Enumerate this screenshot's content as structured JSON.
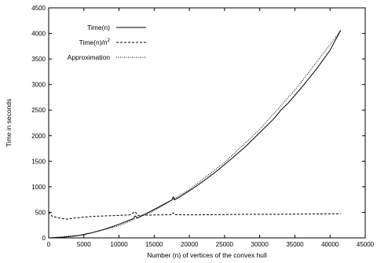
{
  "chart_data": {
    "type": "line",
    "title": "",
    "xlabel": "Number (n) of vertices of the convex hull",
    "ylabel": "Time in seconds",
    "xlim": [
      0,
      45000
    ],
    "ylim": [
      0,
      4500
    ],
    "xticks": [
      0,
      5000,
      10000,
      15000,
      20000,
      25000,
      30000,
      35000,
      40000,
      45000
    ],
    "yticks": [
      0,
      500,
      1000,
      1500,
      2000,
      2500,
      3000,
      3500,
      4000,
      4500
    ],
    "grid": false,
    "legend_position": "top-left",
    "series": [
      {
        "name": "Time(n)",
        "name_sup": "",
        "dash": "solid",
        "x": [
          0,
          2000,
          4000,
          6000,
          8000,
          10000,
          12000,
          12300,
          12600,
          14000,
          16000,
          17500,
          17700,
          17900,
          18500,
          20000,
          22000,
          24000,
          26000,
          28000,
          30000,
          32000,
          32800,
          33000,
          34000,
          36000,
          38000,
          40000,
          41500
        ],
        "y": [
          0,
          10,
          40,
          95,
          170,
          265,
          375,
          430,
          390,
          485,
          630,
          740,
          800,
          745,
          790,
          920,
          1110,
          1320,
          1550,
          1790,
          2060,
          2330,
          2460,
          2500,
          2630,
          2950,
          3290,
          3670,
          4060
        ]
      },
      {
        "name": "Time(n)/n",
        "name_sup": "2",
        "dash": "dashed",
        "x": [
          0,
          500,
          1500,
          2500,
          3500,
          4500,
          6000,
          8000,
          10000,
          11500,
          12300,
          12700,
          14000,
          16000,
          17500,
          17700,
          17900,
          20000,
          24000,
          28000,
          32000,
          36000,
          40000,
          41500
        ],
        "y": [
          510,
          420,
          390,
          365,
          385,
          400,
          420,
          430,
          440,
          450,
          510,
          440,
          445,
          450,
          455,
          490,
          455,
          450,
          455,
          460,
          460,
          465,
          470,
          470
        ]
      },
      {
        "name": "Approximation",
        "name_sup": "",
        "dash": "dotted",
        "x": [
          0,
          5000,
          10000,
          15000,
          20000,
          25000,
          30000,
          35000,
          40000,
          41500
        ],
        "y": [
          0,
          59,
          236,
          531,
          944,
          1475,
          2124,
          2891,
          3776,
          4060
        ]
      }
    ]
  }
}
